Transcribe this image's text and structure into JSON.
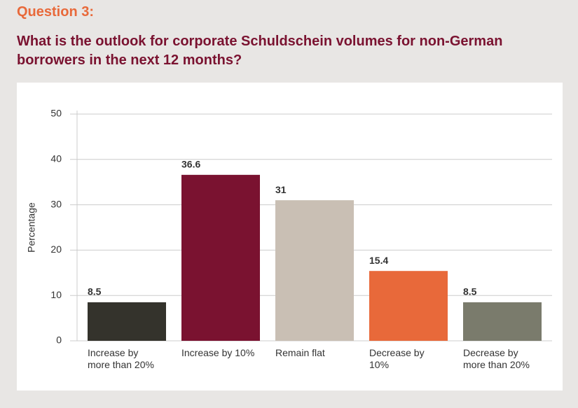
{
  "header": {
    "label": "Question 3:",
    "question": "What is the outlook for corporate Schuldschein volumes for non-German borrowers in the next 12 months?"
  },
  "chart_data": {
    "type": "bar",
    "y_label": "Percentage",
    "categories": [
      "Increase by more than 20%",
      "Increase by 10%",
      "Remain flat",
      "Decrease by 10%",
      "Decrease by more than 20%"
    ],
    "values": [
      8.5,
      36.6,
      31,
      15.4,
      8.5
    ],
    "colors": [
      "#34332c",
      "#7a1230",
      "#c9bfb4",
      "#e8693a",
      "#7a7b6c"
    ],
    "ylim": [
      0,
      50
    ],
    "yticks": [
      0,
      10,
      20,
      30,
      40,
      50
    ],
    "grid": true
  }
}
